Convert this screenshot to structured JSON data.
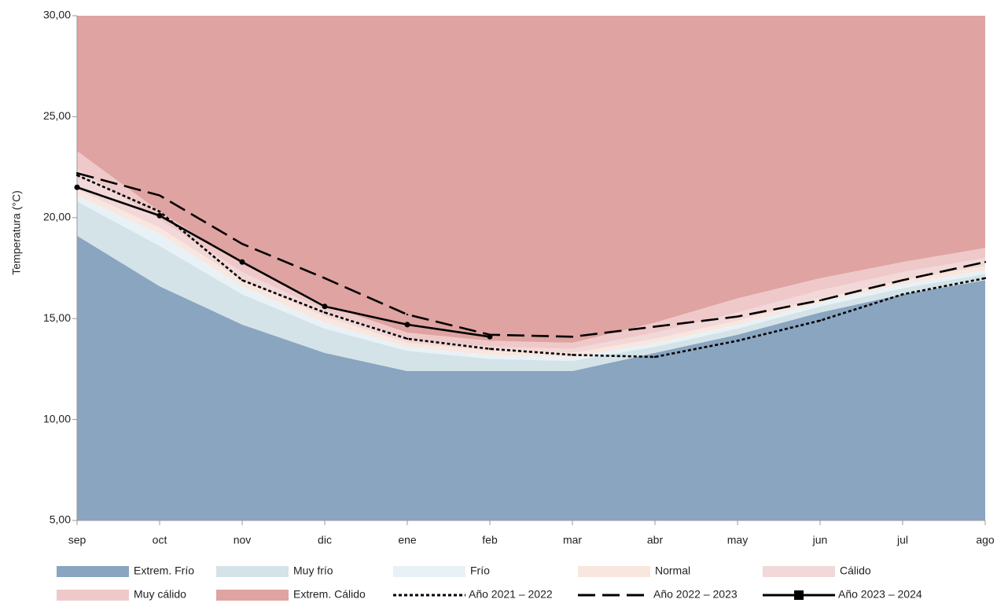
{
  "chart_data": {
    "type": "area-line",
    "y_label": "Temperatura (°C)",
    "categories": [
      "sep",
      "oct",
      "nov",
      "dic",
      "ene",
      "feb",
      "mar",
      "abr",
      "may",
      "jun",
      "jul",
      "ago"
    ],
    "ylim": [
      5,
      30
    ],
    "yticks": [
      {
        "value": 5,
        "label": "5,00"
      },
      {
        "value": 10,
        "label": "10,00"
      },
      {
        "value": 15,
        "label": "15,00"
      },
      {
        "value": 20,
        "label": "20,00"
      },
      {
        "value": 25,
        "label": "25,00"
      },
      {
        "value": 30,
        "label": "30,00"
      }
    ],
    "bands": [
      {
        "name": "Extrem. Frío",
        "color": "#8aa5c0",
        "values": [
          19.1,
          16.6,
          14.7,
          13.3,
          12.4,
          12.4,
          12.4,
          13.3,
          14.2,
          15.3,
          16.2,
          16.9
        ]
      },
      {
        "name": "Muy frío",
        "color": "#d3e3e8",
        "values": [
          1.7,
          2.0,
          1.5,
          1.2,
          1.0,
          0.6,
          0.5,
          0.3,
          0.3,
          0.3,
          0.3,
          0.3
        ]
      },
      {
        "name": "Frío",
        "color": "#e8f1f5",
        "values": [
          0.3,
          0.6,
          0.4,
          0.3,
          0.2,
          0.2,
          0.2,
          0.2,
          0.2,
          0.2,
          0.2,
          0.2
        ]
      },
      {
        "name": "Normal",
        "color": "#f9e6de",
        "values": [
          0.3,
          0.3,
          0.3,
          0.3,
          0.2,
          0.2,
          0.2,
          0.2,
          0.2,
          0.2,
          0.2,
          0.2
        ]
      },
      {
        "name": "Cálido",
        "color": "#f2d8d8",
        "values": [
          1.0,
          0.4,
          0.4,
          0.3,
          0.2,
          0.2,
          0.2,
          0.3,
          0.4,
          0.4,
          0.4,
          0.4
        ]
      },
      {
        "name": "Muy cálido",
        "color": "#efc9c9",
        "values": [
          0.9,
          0.4,
          0.4,
          0.3,
          0.3,
          0.3,
          0.3,
          0.5,
          0.7,
          0.6,
          0.5,
          0.5
        ]
      },
      {
        "name": "Extrem. Cálido",
        "color": "#dfa3a1",
        "values": [
          6.7,
          9.7,
          12.3,
          14.3,
          15.7,
          16.1,
          16.2,
          15.2,
          14.0,
          13.0,
          12.2,
          11.5
        ]
      }
    ],
    "series": [
      {
        "name": "Año 2021 – 2022",
        "color": "#000000",
        "style": "dotted",
        "values": [
          22.1,
          20.3,
          16.9,
          15.3,
          14.0,
          13.5,
          13.2,
          13.1,
          13.9,
          14.9,
          16.2,
          17.0
        ]
      },
      {
        "name": "Año 2022 – 2023",
        "color": "#000000",
        "style": "dashed",
        "values": [
          22.2,
          21.1,
          18.7,
          17.0,
          15.2,
          14.2,
          14.1,
          14.6,
          15.1,
          15.9,
          16.9,
          17.8
        ]
      },
      {
        "name": "Año 2023 – 2024",
        "color": "#000000",
        "style": "solid",
        "markers": true,
        "values": [
          21.5,
          20.1,
          17.8,
          15.6,
          14.7,
          14.1,
          null,
          null,
          null,
          null,
          null,
          null
        ]
      }
    ]
  }
}
